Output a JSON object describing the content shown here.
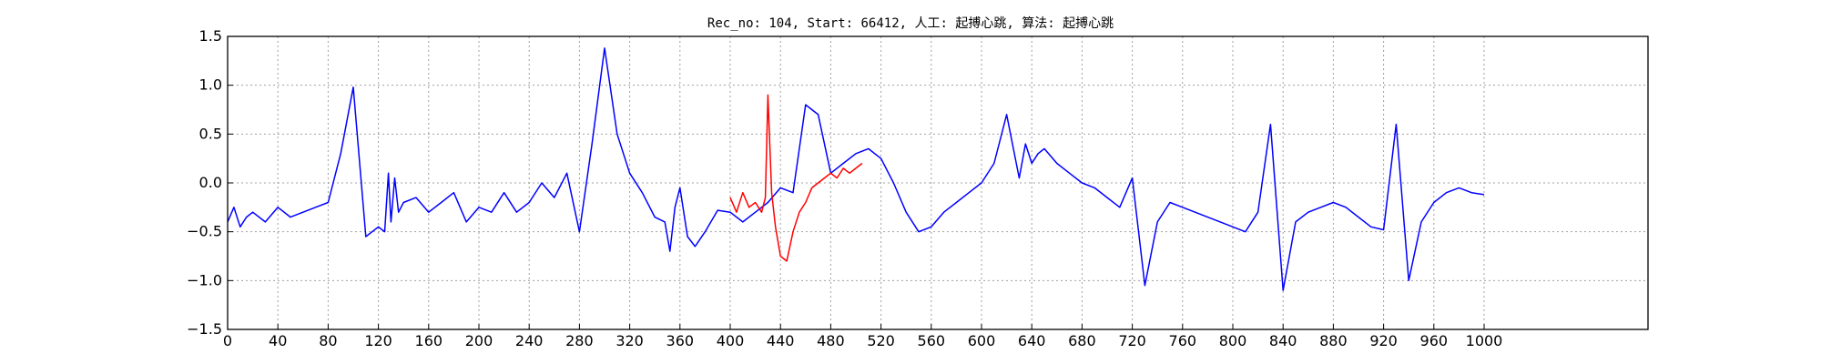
{
  "chart_data": {
    "type": "line",
    "title": "Rec_no: 104, Start: 66412, 人工: 起搏心跳, 算法: 起搏心跳",
    "xlabel": "",
    "ylabel": "",
    "grid": true,
    "xlim": [
      0,
      1000
    ],
    "ylim": [
      -1.5,
      1.5
    ],
    "yticks": [
      -1.5,
      -1.0,
      -0.5,
      0.0,
      0.5,
      1.0,
      1.5
    ],
    "ytick_labels": [
      "−1.5",
      "−1.0",
      "−0.5",
      "0.0",
      "0.5",
      "1.0",
      "1.5"
    ],
    "xticks": [
      0,
      40,
      80,
      120,
      160,
      200,
      240,
      280,
      320,
      360,
      400,
      440,
      480,
      520,
      560,
      600,
      640,
      680,
      720,
      760,
      800,
      840,
      880,
      920,
      960,
      1000
    ],
    "xtick_labels": [
      "0",
      "40",
      "80",
      "120",
      "160",
      "200",
      "240",
      "280",
      "320",
      "360",
      "400",
      "440",
      "480",
      "520",
      "560",
      "600",
      "640",
      "680",
      "720",
      "760",
      "800",
      "840",
      "880",
      "920",
      "960",
      "1000"
    ],
    "colors": {
      "normal": "#0000ff",
      "highlight": "#ff0000",
      "grid": "#a0a0a0"
    },
    "series": [
      {
        "color": "#0000ff",
        "x": [
          0,
          5,
          10,
          15,
          20,
          30,
          40,
          50,
          60,
          70,
          80,
          90,
          100,
          110,
          115,
          120,
          125,
          128,
          130,
          133,
          136,
          140,
          150,
          160,
          170,
          180,
          190,
          200,
          210,
          220,
          230,
          240,
          250,
          260,
          270,
          280,
          290,
          300,
          310,
          320,
          330,
          340,
          348,
          352,
          356,
          360,
          366,
          372,
          380,
          390,
          400,
          410,
          420,
          430,
          440,
          450,
          460,
          470,
          480,
          490,
          500,
          510,
          520,
          530,
          540,
          550,
          560,
          570,
          580,
          590,
          600,
          610,
          620,
          630,
          635,
          640,
          645,
          650,
          660,
          670,
          680,
          690,
          700,
          710,
          720,
          730,
          740,
          750,
          760,
          770,
          780,
          790,
          800,
          810,
          820,
          830,
          840,
          850,
          860,
          870,
          880,
          890,
          900,
          910,
          920,
          930,
          940,
          950,
          960,
          970,
          980,
          990,
          1000
        ],
        "y": [
          -0.4,
          -0.25,
          -0.45,
          -0.35,
          -0.3,
          -0.4,
          -0.25,
          -0.35,
          -0.3,
          -0.25,
          -0.2,
          0.3,
          0.98,
          -0.55,
          -0.5,
          -0.45,
          -0.5,
          0.1,
          -0.4,
          0.05,
          -0.3,
          -0.2,
          -0.15,
          -0.3,
          -0.2,
          -0.1,
          -0.4,
          -0.25,
          -0.3,
          -0.1,
          -0.3,
          -0.2,
          0.0,
          -0.15,
          0.1,
          -0.5,
          0.4,
          1.38,
          0.5,
          0.1,
          -0.1,
          -0.35,
          -0.4,
          -0.7,
          -0.25,
          -0.05,
          -0.55,
          -0.65,
          -0.5,
          -0.28,
          -0.3,
          -0.4,
          -0.3,
          -0.2,
          -0.05,
          -0.1,
          0.8,
          0.7,
          0.1,
          0.2,
          0.3,
          0.35,
          0.25,
          0.0,
          -0.3,
          -0.5,
          -0.45,
          -0.3,
          -0.2,
          -0.1,
          0.0,
          0.2,
          0.7,
          0.05,
          0.4,
          0.2,
          0.3,
          0.35,
          0.2,
          0.1,
          0.0,
          -0.05,
          -0.15,
          -0.25,
          0.05,
          -1.05,
          -0.4,
          -0.2,
          -0.25,
          -0.3,
          -0.35,
          -0.4,
          -0.45,
          -0.5,
          -0.3,
          0.6,
          -1.1,
          -0.4,
          -0.3,
          -0.25,
          -0.2,
          -0.25,
          -0.35,
          -0.45,
          -0.48,
          0.6,
          -1.0,
          -0.4,
          -0.2,
          -0.1,
          -0.05,
          -0.1,
          -0.12
        ]
      },
      {
        "color": "#ff0000",
        "x": [
          400,
          405,
          410,
          415,
          420,
          425,
          428,
          430,
          433,
          436,
          440,
          445,
          450,
          455,
          460,
          465,
          470,
          475,
          480,
          485,
          490,
          495,
          500,
          505
        ],
        "y": [
          -0.15,
          -0.3,
          -0.1,
          -0.25,
          -0.2,
          -0.3,
          -0.15,
          0.9,
          -0.1,
          -0.45,
          -0.75,
          -0.8,
          -0.5,
          -0.3,
          -0.2,
          -0.05,
          0.0,
          0.05,
          0.1,
          0.05,
          0.15,
          0.1,
          0.15,
          0.2
        ]
      }
    ]
  }
}
